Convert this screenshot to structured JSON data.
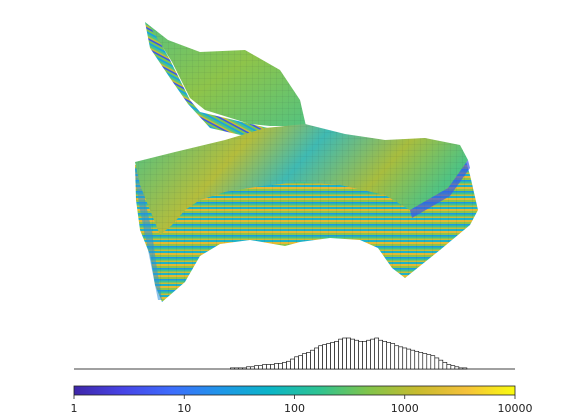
{
  "chart_data": [
    {
      "type": "surface3d",
      "description_colormap": "parula",
      "color_scale": "log",
      "clim": [
        1,
        10000
      ]
    },
    {
      "type": "histogram",
      "x_scale": "log",
      "xlim": [
        1,
        10000
      ],
      "grid": false,
      "bar_edge_color": "#000000",
      "bar_face_color": "#ffffff",
      "counts": [
        0,
        0,
        0,
        0,
        0,
        0,
        0,
        0,
        0,
        0,
        0,
        0,
        0,
        0,
        0,
        0,
        0,
        0,
        0,
        0,
        0,
        0,
        0,
        0,
        0,
        0,
        0,
        0,
        0,
        0,
        0,
        0,
        0,
        0,
        0,
        0,
        0,
        0,
        0,
        1,
        1,
        1,
        1,
        2,
        2,
        3,
        3,
        4,
        4,
        4,
        5,
        5,
        6,
        7,
        9,
        11,
        12,
        14,
        15,
        17,
        19,
        21,
        22,
        23,
        24,
        25,
        27,
        28,
        28,
        27,
        26,
        25,
        25,
        26,
        27,
        28,
        26,
        25,
        24,
        23,
        21,
        20,
        19,
        18,
        17,
        16,
        15,
        14,
        13,
        12,
        10,
        8,
        6,
        4,
        3,
        2,
        1,
        1,
        0,
        0,
        0,
        0,
        0,
        0,
        0,
        0,
        0,
        0,
        0,
        0
      ]
    },
    {
      "type": "colorbar",
      "scale": "log",
      "range": [
        1,
        10000
      ],
      "tick_labels": [
        "1",
        "10",
        "100",
        "1000",
        "10000"
      ],
      "tick_values": [
        1,
        10,
        100,
        1000,
        10000
      ],
      "colormap_stops": [
        "#3e26a8",
        "#4744e6",
        "#3d6dfc",
        "#1f96e8",
        "#0bb5c7",
        "#2ec391",
        "#80c44b",
        "#c7bb2e",
        "#f5c13a",
        "#f9fb0e"
      ]
    }
  ]
}
